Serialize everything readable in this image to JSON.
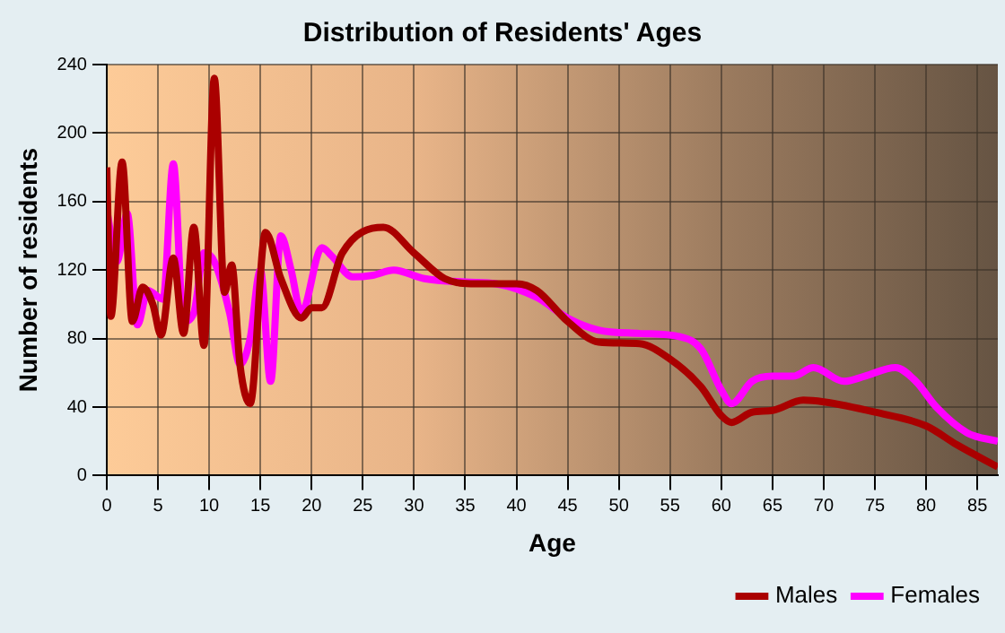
{
  "chart_data": {
    "type": "line",
    "title": "Distribution of Residents' Ages",
    "xlabel": "Age",
    "ylabel": "Number of residents",
    "xlim": [
      0,
      87
    ],
    "xticks": [
      0,
      5,
      10,
      15,
      20,
      25,
      30,
      35,
      40,
      45,
      50,
      55,
      60,
      65,
      70,
      75,
      80,
      85
    ],
    "ylim": [
      0,
      240
    ],
    "yticks": [
      0,
      40,
      80,
      120,
      160,
      200,
      240
    ],
    "grid": true,
    "legend": "bottom right",
    "marker": "none",
    "series": [
      {
        "name": "Males",
        "color": "#aa0000",
        "x": [
          0,
          0.4,
          1.5,
          2.5,
          3.5,
          4.5,
          5.3,
          6.5,
          7.5,
          8.5,
          9.5,
          10.5,
          11.5,
          12.2,
          13,
          14,
          15.5,
          17,
          19,
          20,
          21,
          23,
          27,
          30,
          33,
          36,
          40,
          42,
          45,
          48,
          52,
          55,
          58,
          60,
          61,
          63,
          65,
          68,
          70,
          75,
          80,
          83,
          87
        ],
        "values": [
          180,
          93,
          183,
          90,
          110,
          100,
          82,
          127,
          83,
          145,
          76,
          232,
          107,
          123,
          65,
          42,
          142,
          115,
          92,
          98,
          98,
          130,
          145,
          130,
          115,
          112,
          112,
          108,
          90,
          78,
          77,
          68,
          52,
          35,
          31,
          37,
          38,
          44,
          43,
          37,
          29,
          18,
          5
        ]
      },
      {
        "name": "Females",
        "color": "#ff00ff",
        "x": [
          0,
          1,
          2,
          3,
          4,
          5.5,
          6.5,
          7.5,
          8.5,
          9.5,
          10.5,
          12,
          13,
          14,
          15,
          16,
          17,
          18,
          19,
          21,
          22,
          24,
          26,
          28,
          31,
          35,
          38,
          42,
          45,
          48,
          52,
          56,
          58,
          60,
          61,
          63,
          65,
          67,
          69,
          72,
          74,
          77,
          79,
          81,
          84,
          87
        ],
        "values": [
          155,
          125,
          153,
          88,
          108,
          103,
          182,
          90,
          95,
          130,
          125,
          95,
          65,
          80,
          120,
          55,
          140,
          120,
          95,
          133,
          128,
          116,
          117,
          120,
          115,
          113,
          112,
          104,
          92,
          85,
          83,
          81,
          74,
          50,
          42,
          55,
          58,
          58,
          63,
          55,
          58,
          63,
          55,
          40,
          25,
          20
        ]
      }
    ]
  }
}
